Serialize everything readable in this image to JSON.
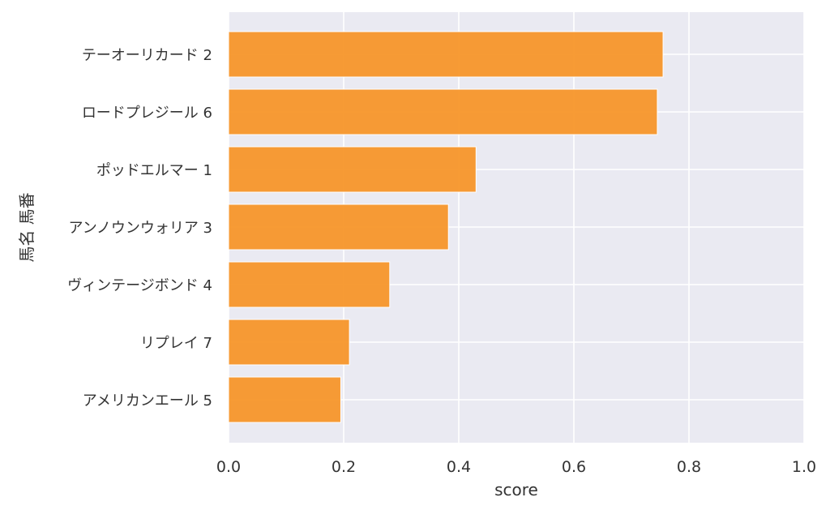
{
  "chart_data": {
    "type": "bar",
    "orientation": "horizontal",
    "categories": [
      "テーオーリカード 2",
      "ロードプレジール 6",
      "ポッドエルマー 1",
      "アンノウンウォリア 3",
      "ヴィンテージボンド 4",
      "リプレイ 7",
      "アメリカンエール 5"
    ],
    "values": [
      0.755,
      0.745,
      0.43,
      0.382,
      0.28,
      0.21,
      0.195
    ],
    "xlabel": "score",
    "ylabel": "馬名 馬番",
    "xlim": [
      0,
      1.0
    ],
    "xticks": [
      "0.0",
      "0.2",
      "0.4",
      "0.6",
      "0.8",
      "1.0"
    ],
    "grid": true,
    "colors": {
      "bar": "#f7962a",
      "bar_edge": "#ffffff",
      "background": "#eaeaf2",
      "grid": "#ffffff",
      "text": "#333333"
    }
  }
}
